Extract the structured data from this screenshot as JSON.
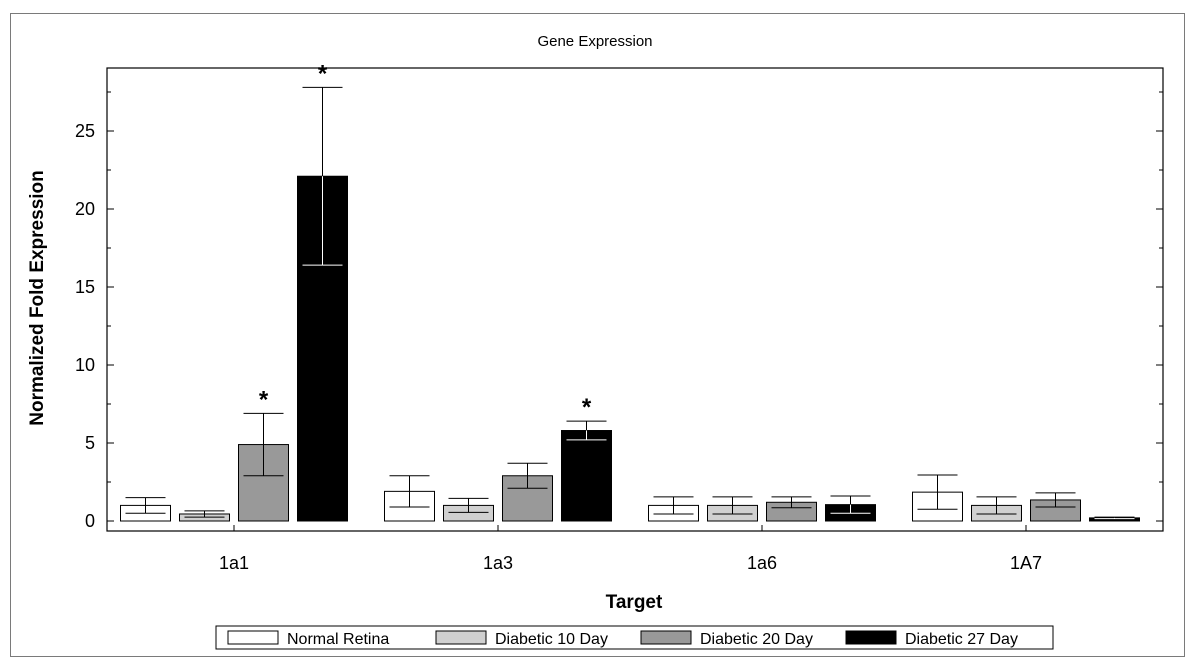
{
  "chart_data": {
    "type": "bar",
    "title": "Gene Expression",
    "xlabel": "Target",
    "ylabel": "Normalized Fold Expression",
    "categories": [
      "1a1",
      "1a3",
      "1a6",
      "1A7"
    ],
    "ylim": [
      -0.5,
      29
    ],
    "yticks": [
      0,
      5,
      10,
      15,
      20,
      25
    ],
    "series": [
      {
        "name": "Normal Retina",
        "color": "#ffffff",
        "values": [
          1.0,
          1.9,
          1.0,
          1.85
        ],
        "errors": [
          0.5,
          1.0,
          0.55,
          1.1
        ]
      },
      {
        "name": "Diabetic 10 Day",
        "color": "#d0d0d0",
        "values": [
          0.45,
          1.0,
          1.0,
          1.0
        ],
        "errors": [
          0.2,
          0.45,
          0.55,
          0.55
        ]
      },
      {
        "name": "Diabetic 20 Day",
        "color": "#999999",
        "values": [
          4.9,
          2.9,
          1.2,
          1.35
        ],
        "errors": [
          2.0,
          0.8,
          0.35,
          0.45
        ]
      },
      {
        "name": "Diabetic 27 Day",
        "color": "#000000",
        "values": [
          22.1,
          5.8,
          1.05,
          0.2
        ],
        "errors": [
          5.7,
          0.6,
          0.55,
          0.05
        ]
      }
    ],
    "significance": [
      {
        "category": "1a1",
        "series": "Diabetic 20 Day",
        "mark": "*"
      },
      {
        "category": "1a1",
        "series": "Diabetic 27 Day",
        "mark": "*"
      },
      {
        "category": "1a3",
        "series": "Diabetic 27 Day",
        "mark": "*"
      }
    ],
    "grid": false,
    "legend": "bottom"
  }
}
